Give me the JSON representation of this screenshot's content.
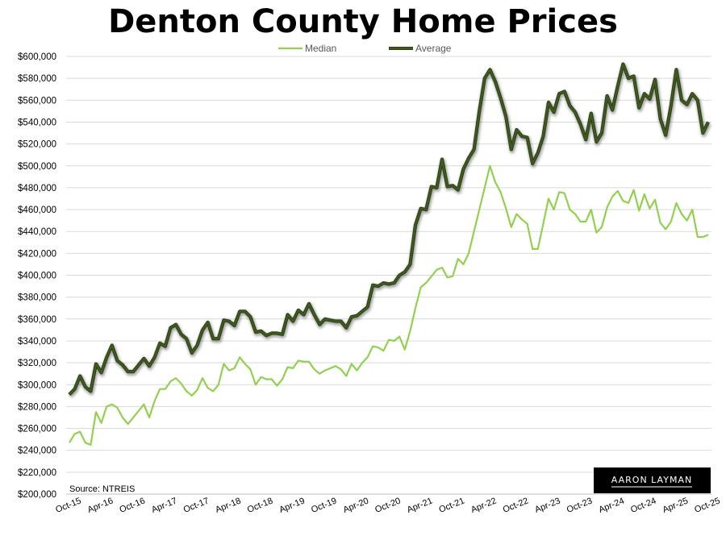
{
  "chart_data": {
    "type": "line",
    "title": "Denton County Home Prices",
    "ylim": [
      200000,
      600000
    ],
    "y_ticks": [
      "$600,000",
      "$580,000",
      "$560,000",
      "$540,000",
      "$520,000",
      "$500,000",
      "$480,000",
      "$460,000",
      "$440,000",
      "$420,000",
      "$400,000",
      "$380,000",
      "$360,000",
      "$340,000",
      "$320,000",
      "$300,000",
      "$280,000",
      "$260,000",
      "$240,000",
      "$220,000",
      "$200,000"
    ],
    "x_ticks": [
      "Oct-15",
      "Apr-16",
      "Oct-16",
      "Apr-17",
      "Oct-17",
      "Apr-18",
      "Oct-18",
      "Apr-19",
      "Oct-19",
      "Apr-20",
      "Oct-20",
      "Apr-21",
      "Oct-21",
      "Apr-22",
      "Oct-22",
      "Apr-23",
      "Oct-23",
      "Apr-24",
      "Oct-24",
      "Apr-25",
      "Oct-25"
    ],
    "grid": true,
    "legend_position": "top",
    "series": [
      {
        "name": "Median",
        "color": "#92d050",
        "values": [
          247000,
          255000,
          257000,
          247000,
          245000,
          275000,
          265000,
          280000,
          282000,
          279000,
          270000,
          264000,
          270000,
          276000,
          282000,
          270000,
          285000,
          296000,
          296000,
          303000,
          306000,
          301000,
          294000,
          290000,
          295000,
          306000,
          297000,
          294000,
          300000,
          319000,
          313000,
          315000,
          325000,
          319000,
          314000,
          300000,
          307000,
          305000,
          305000,
          299000,
          305000,
          316000,
          315000,
          322000,
          321000,
          321000,
          314000,
          310000,
          313000,
          315000,
          317000,
          314000,
          308000,
          319000,
          313000,
          320000,
          325000,
          335000,
          334000,
          331000,
          341000,
          340000,
          344000,
          332000,
          349000,
          370000,
          389000,
          393000,
          399000,
          405000,
          407000,
          398000,
          399000,
          415000,
          410000,
          420000,
          440000,
          460000,
          480000,
          500000,
          485000,
          476000,
          461000,
          444000,
          456000,
          451000,
          447000,
          424000,
          424000,
          447000,
          470000,
          460000,
          476000,
          475000,
          460000,
          456000,
          449000,
          449000,
          460000,
          439000,
          444000,
          462000,
          472000,
          477000,
          468000,
          466000,
          478000,
          459000,
          474000,
          461000,
          469000,
          448000,
          442000,
          449000,
          466000,
          456000,
          450000,
          460000,
          435000,
          435000,
          437000
        ]
      },
      {
        "name": "Average",
        "color": "#3f5a1e",
        "values": [
          291000,
          296000,
          308000,
          298000,
          294000,
          319000,
          311000,
          325000,
          336000,
          322000,
          318000,
          312000,
          312000,
          318000,
          324000,
          317000,
          325000,
          338000,
          335000,
          352000,
          355000,
          346000,
          342000,
          329000,
          336000,
          350000,
          357000,
          342000,
          342000,
          359000,
          358000,
          354000,
          367000,
          367000,
          362000,
          348000,
          349000,
          345000,
          347000,
          347000,
          346000,
          364000,
          358000,
          368000,
          364000,
          374000,
          364000,
          355000,
          360000,
          359000,
          358000,
          358000,
          352000,
          362000,
          363000,
          367000,
          371000,
          391000,
          390000,
          393000,
          392000,
          393000,
          400000,
          403000,
          410000,
          446000,
          461000,
          460000,
          481000,
          480000,
          506000,
          481000,
          482000,
          478000,
          497000,
          507000,
          515000,
          550000,
          580000,
          588000,
          577000,
          562000,
          545000,
          515000,
          533000,
          527000,
          526000,
          502000,
          512000,
          527000,
          558000,
          549000,
          566000,
          568000,
          555000,
          549000,
          538000,
          524000,
          548000,
          522000,
          530000,
          564000,
          551000,
          573000,
          593000,
          580000,
          582000,
          553000,
          566000,
          561000,
          579000,
          543000,
          528000,
          555000,
          588000,
          560000,
          556000,
          566000,
          560000,
          530000,
          540000
        ]
      }
    ],
    "source": "Source: NTREIS",
    "logo_text": "AARON LAYMAN"
  }
}
